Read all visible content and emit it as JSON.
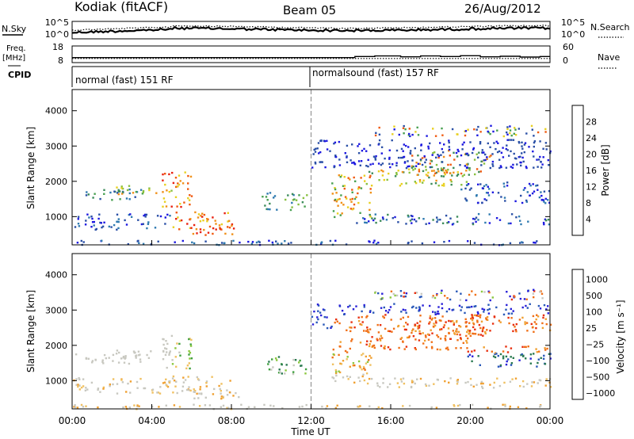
{
  "header": {
    "station": "Kodiak (fitACF)",
    "beam": "Beam 05",
    "date": "26/Aug/2012"
  },
  "side_labels": {
    "nsky": "N.Sky",
    "freq": "Freq.",
    "freq_unit": "[MHz]",
    "cpid": "CPID",
    "nsearch": "N.Search",
    "nave": "Nave"
  },
  "modes": [
    "normal (fast) 151 RF",
    "normalsound (fast) 157 RF"
  ],
  "chart_data": [
    {
      "type": "line",
      "name": "noise",
      "left_axis": {
        "label": "N.Sky",
        "ticks": [
          "10^5",
          "10^0"
        ]
      },
      "right_axis": {
        "label": "N.Search",
        "ticks": [
          "10^5",
          "10^0"
        ]
      },
      "x_range_hours": [
        0,
        24
      ]
    },
    {
      "type": "line",
      "name": "frequency-nave",
      "left_axis": {
        "label": "Freq. [MHz]",
        "ticks": [
          18,
          8
        ],
        "range": [
          8,
          18
        ]
      },
      "right_axis": {
        "label": "Nave",
        "ticks": [
          60,
          0
        ],
        "range": [
          0,
          60
        ]
      },
      "freq_level_mhz": 10.5,
      "nave_steps": [
        [
          0,
          18
        ],
        [
          13.5,
          18
        ],
        [
          14.2,
          22
        ],
        [
          15.2,
          24
        ],
        [
          16.5,
          21
        ],
        [
          17.5,
          24
        ],
        [
          18.5,
          22
        ],
        [
          19.5,
          25
        ],
        [
          20.5,
          21
        ],
        [
          21.5,
          23
        ],
        [
          22.5,
          20
        ],
        [
          23.5,
          22
        ],
        [
          24,
          22
        ]
      ]
    },
    {
      "type": "heatmap",
      "name": "power",
      "ylabel": "Slant Range [km]",
      "yticks": [
        1000,
        2000,
        3000,
        4000
      ],
      "ylim": [
        200,
        4600
      ],
      "xticks": [
        "00:00",
        "04:00",
        "08:00",
        "12:00",
        "16:00",
        "20:00",
        "00:00"
      ],
      "xlim": [
        0,
        24
      ],
      "colorbar": {
        "label": "Power [dB]",
        "ticks": [
          4,
          8,
          12,
          16,
          20,
          24,
          28
        ],
        "colors": [
          "#1c18e0",
          "#2a4fa6",
          "#2f7ab0",
          "#3c8c5a",
          "#48a050",
          "#88c040",
          "#e8d020",
          "#f09018",
          "#f05a10",
          "#e82010"
        ]
      }
    },
    {
      "type": "heatmap",
      "name": "velocity",
      "ylabel": "Slant Range [km]",
      "yticks": [
        1000,
        2000,
        3000,
        4000
      ],
      "ylim": [
        200,
        4600
      ],
      "xticks": [
        "00:00",
        "04:00",
        "08:00",
        "12:00",
        "16:00",
        "20:00",
        "00:00"
      ],
      "xlim": [
        0,
        24
      ],
      "xlabel": "Time UT",
      "colorbar": {
        "label": "Velocity [m s⁻¹]",
        "ticks": [
          "1000",
          "500",
          "100",
          "25",
          "−25",
          "−100",
          "−500",
          "−1000"
        ],
        "colors": [
          "#2820d8",
          "#2858b8",
          "#2a7a50",
          "#40a040",
          "#8cc840",
          "#c8c8c0",
          "#f0c060",
          "#f0a030",
          "#f07018",
          "#e83010"
        ]
      }
    }
  ]
}
